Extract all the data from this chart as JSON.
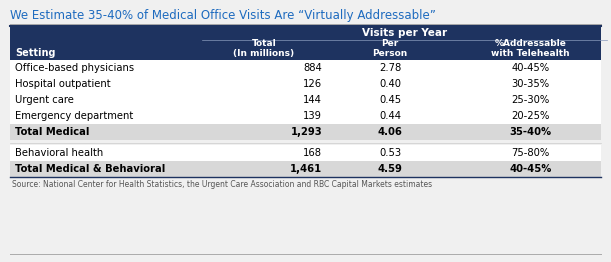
{
  "title": "We Estimate 35-40% of Medical Office Visits Are “Virtually Addressable”",
  "title_color": "#1e6bbf",
  "header_bg": "#1e3360",
  "header_text_color": "#ffffff",
  "subheader_text": "Visits per Year",
  "col1_header": "Setting",
  "col2_header": "Total\n(In millions)",
  "col3_header": "Per\nPerson",
  "col4_header": "%Addressable\nwith Telehealth",
  "rows": [
    {
      "setting": "Office-based physicians",
      "total": "884",
      "per_person": "2.78",
      "addressable": "40-45%",
      "bold": false,
      "bg": "#ffffff"
    },
    {
      "setting": "Hospital outpatient",
      "total": "126",
      "per_person": "0.40",
      "addressable": "30-35%",
      "bold": false,
      "bg": "#ffffff"
    },
    {
      "setting": "Urgent care",
      "total": "144",
      "per_person": "0.45",
      "addressable": "25-30%",
      "bold": false,
      "bg": "#ffffff"
    },
    {
      "setting": "Emergency department",
      "total": "139",
      "per_person": "0.44",
      "addressable": "20-25%",
      "bold": false,
      "bg": "#ffffff"
    },
    {
      "setting": "Total Medical",
      "total": "1,293",
      "per_person": "4.06",
      "addressable": "35-40%",
      "bold": true,
      "bg": "#d8d8d8"
    },
    {
      "setting": "Behavioral health",
      "total": "168",
      "per_person": "0.53",
      "addressable": "75-80%",
      "bold": false,
      "bg": "#ffffff"
    },
    {
      "setting": "Total Medical & Behavioral",
      "total": "1,461",
      "per_person": "4.59",
      "addressable": "40-45%",
      "bold": true,
      "bg": "#d8d8d8"
    }
  ],
  "source_text": "Source: National Center for Health Statistics, the Urgent Care Association and RBC Capital Markets estimates",
  "fig_bg": "#f0f0f0",
  "table_border_color": "#1e3360"
}
